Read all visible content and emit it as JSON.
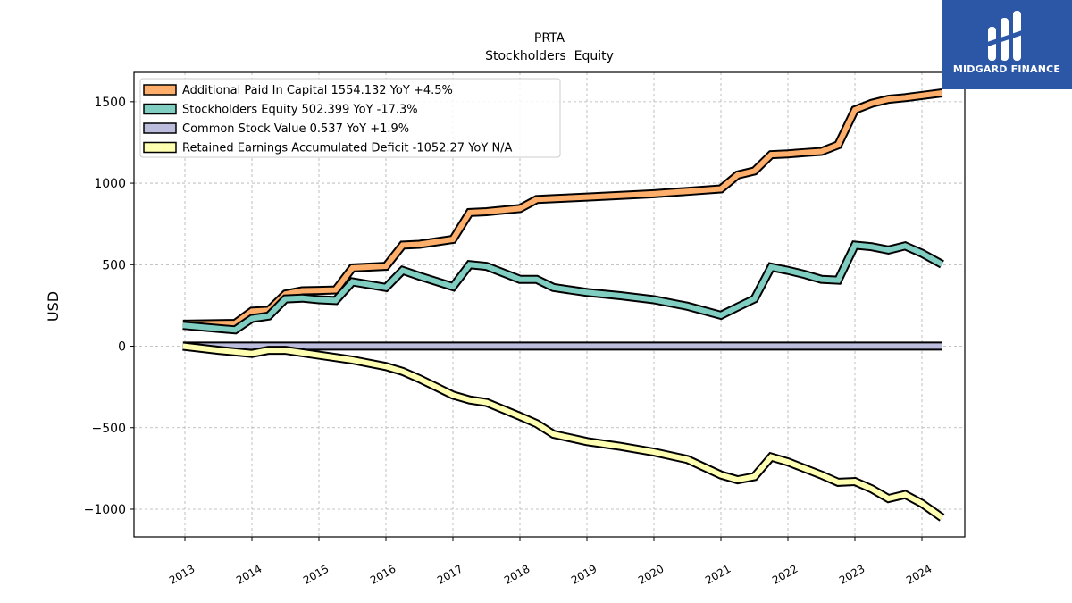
{
  "brand": {
    "name": "MIDGARD FINANCE",
    "color": "#2b57a6"
  },
  "chart_data": {
    "type": "line",
    "title": "PRTA",
    "subtitle": "Stockholders  Equity",
    "ylabel": "USD",
    "xlabel": "",
    "ylim": [
      -1170,
      1680
    ],
    "xlim": [
      2012.24,
      2024.64
    ],
    "yticks": [
      -1000,
      -500,
      0,
      500,
      1000,
      1500
    ],
    "ytick_labels": [
      "−1000",
      "−500",
      "0",
      "500",
      "1000",
      "1500"
    ],
    "xticks": [
      2013,
      2014,
      2015,
      2016,
      2017,
      2018,
      2019,
      2020,
      2021,
      2022,
      2023,
      2024
    ],
    "xtick_labels": [
      "2013",
      "2014",
      "2015",
      "2016",
      "2017",
      "2018",
      "2019",
      "2020",
      "2021",
      "2022",
      "2023",
      "2024"
    ],
    "grid": true,
    "legend_position": "top-left",
    "series": [
      {
        "name": "Additional Paid In Capital",
        "legend": "Additional Paid In Capital  1554.132 YoY +4.5%",
        "color": "#fdae6b",
        "x": [
          2012.97,
          2013.75,
          2014.0,
          2014.25,
          2014.5,
          2014.75,
          2015.0,
          2015.25,
          2015.5,
          2016.0,
          2016.25,
          2016.5,
          2017.0,
          2017.25,
          2017.5,
          2018.0,
          2018.25,
          2018.5,
          2018.75,
          2019.0,
          2019.5,
          2020.0,
          2020.5,
          2021.0,
          2021.25,
          2021.5,
          2021.75,
          2022.0,
          2022.25,
          2022.5,
          2022.75,
          2023.0,
          2023.25,
          2023.5,
          2023.75,
          2024.0,
          2024.3
        ],
        "values": [
          135,
          140,
          215,
          220,
          320,
          340,
          342,
          345,
          480,
          490,
          620,
          625,
          655,
          820,
          825,
          845,
          900,
          905,
          910,
          915,
          925,
          935,
          950,
          965,
          1050,
          1075,
          1175,
          1180,
          1188,
          1195,
          1235,
          1450,
          1490,
          1515,
          1525,
          1538,
          1554
        ]
      },
      {
        "name": "Stockholders Equity",
        "legend": "Stockholders Equity  502.399 YoY -17.3%",
        "color": "#80cdc1",
        "x": [
          2012.97,
          2013.75,
          2014.0,
          2014.25,
          2014.5,
          2014.75,
          2015.0,
          2015.25,
          2015.5,
          2016.0,
          2016.25,
          2016.5,
          2017.0,
          2017.25,
          2017.5,
          2018.0,
          2018.25,
          2018.5,
          2018.75,
          2019.0,
          2019.5,
          2020.0,
          2020.5,
          2021.0,
          2021.25,
          2021.5,
          2021.75,
          2022.0,
          2022.25,
          2022.5,
          2022.75,
          2023.0,
          2023.25,
          2023.5,
          2023.75,
          2024.0,
          2024.3
        ],
        "values": [
          128,
          100,
          170,
          185,
          290,
          295,
          285,
          280,
          395,
          360,
          465,
          430,
          365,
          500,
          490,
          410,
          410,
          360,
          345,
          330,
          310,
          285,
          245,
          190,
          240,
          290,
          485,
          465,
          440,
          410,
          405,
          620,
          610,
          590,
          615,
          570,
          502
        ]
      },
      {
        "name": "Common Stock Value",
        "legend": "Common Stock Value  0.537 YoY +1.9%",
        "color": "#bcbddc",
        "x": [
          2012.97,
          2024.3
        ],
        "values": [
          0.5,
          0.537
        ]
      },
      {
        "name": "Retained Earnings Accumulated Deficit",
        "legend": "Retained Earnings Accumulated Deficit  -1052.27 YoY N/A",
        "color": "#ffffb2",
        "x": [
          2012.97,
          2013.5,
          2014.0,
          2014.25,
          2014.5,
          2015.0,
          2015.5,
          2016.0,
          2016.25,
          2016.5,
          2016.75,
          2017.0,
          2017.25,
          2017.5,
          2018.0,
          2018.25,
          2018.5,
          2019.0,
          2019.5,
          2020.0,
          2020.5,
          2021.0,
          2021.25,
          2021.5,
          2021.75,
          2022.0,
          2022.25,
          2022.5,
          2022.75,
          2023.0,
          2023.25,
          2023.5,
          2023.75,
          2024.0,
          2024.3
        ],
        "values": [
          0,
          -25,
          -45,
          -25,
          -25,
          -55,
          -85,
          -125,
          -155,
          -200,
          -250,
          -300,
          -330,
          -345,
          -430,
          -475,
          -540,
          -585,
          -615,
          -650,
          -695,
          -790,
          -820,
          -800,
          -680,
          -710,
          -750,
          -790,
          -835,
          -830,
          -875,
          -935,
          -910,
          -965,
          -1052
        ]
      }
    ]
  }
}
